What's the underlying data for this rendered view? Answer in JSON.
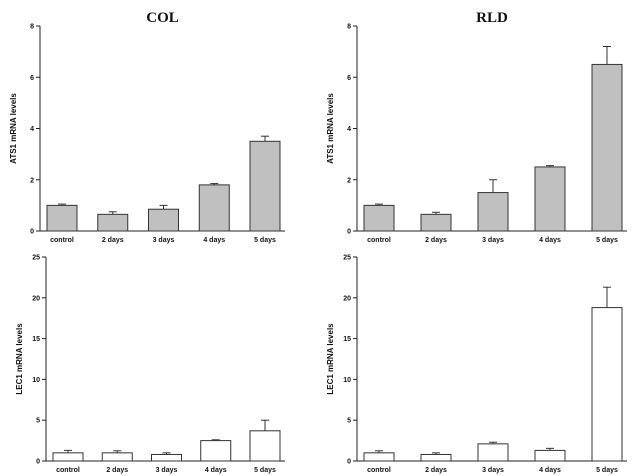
{
  "chart_data": [
    {
      "type": "bar",
      "title": "COL",
      "ylabel": "ATS1 mRNA levels",
      "categories": [
        "control",
        "2 days",
        "3 days",
        "4 days",
        "5 days"
      ],
      "values": [
        1.0,
        0.65,
        0.85,
        1.8,
        3.5
      ],
      "errors": [
        0.05,
        0.1,
        0.15,
        0.05,
        0.2
      ],
      "ylim": [
        0,
        8
      ],
      "yticks": [
        0,
        2,
        4,
        6,
        8
      ],
      "bar_color": "#c0c0c0"
    },
    {
      "type": "bar",
      "title": "RLD",
      "ylabel": "ATS1 mRNA levels",
      "categories": [
        "control",
        "2 days",
        "3 days",
        "4 days",
        "5 days"
      ],
      "values": [
        1.0,
        0.65,
        1.5,
        2.5,
        6.5
      ],
      "errors": [
        0.05,
        0.08,
        0.5,
        0.05,
        0.7
      ],
      "ylim": [
        0,
        8
      ],
      "yticks": [
        0,
        2,
        4,
        6,
        8
      ],
      "bar_color": "#c0c0c0"
    },
    {
      "type": "bar",
      "title": "",
      "ylabel": "LEC1 mRNA levels",
      "categories": [
        "control",
        "2 days",
        "3 days",
        "4 days",
        "5 days"
      ],
      "values": [
        1.0,
        1.0,
        0.8,
        2.5,
        3.7
      ],
      "errors": [
        0.3,
        0.25,
        0.2,
        0.1,
        1.3
      ],
      "ylim": [
        0,
        25
      ],
      "yticks": [
        0,
        5,
        10,
        15,
        20,
        25
      ],
      "bar_color": "#ffffff"
    },
    {
      "type": "bar",
      "title": "",
      "ylabel": "LEC1 mRNA levels",
      "categories": [
        "control",
        "2 days",
        "3 days",
        "4 days",
        "5 days"
      ],
      "values": [
        1.0,
        0.8,
        2.1,
        1.3,
        18.8
      ],
      "errors": [
        0.25,
        0.2,
        0.2,
        0.25,
        2.5
      ],
      "ylim": [
        0,
        25
      ],
      "yticks": [
        0,
        5,
        10,
        15,
        20,
        25
      ],
      "bar_color": "#ffffff"
    }
  ]
}
